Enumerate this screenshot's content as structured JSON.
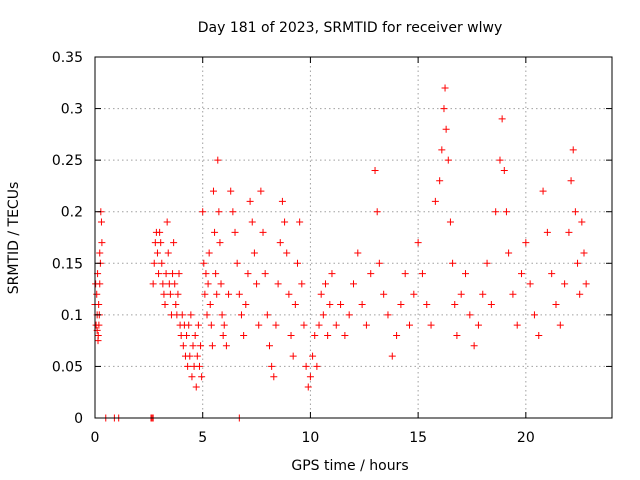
{
  "chart_data": {
    "type": "scatter",
    "title": "Day 181 of 2023, SRMTID for receiver wlwy",
    "xlabel": "GPS time / hours",
    "ylabel": "SRMTID / TECUs",
    "xlim": [
      0,
      24
    ],
    "ylim": [
      0,
      0.35
    ],
    "xticks": [
      0,
      5,
      10,
      15,
      20
    ],
    "yticks": [
      0,
      0.05,
      0.1,
      0.15,
      0.2,
      0.25,
      0.3,
      0.35
    ],
    "xtick_labels": [
      "0",
      "5",
      "10",
      "15",
      "20"
    ],
    "ytick_labels": [
      "0",
      "0.05",
      "0.1",
      "0.15",
      "0.2",
      "0.25",
      "0.3",
      "0.35"
    ],
    "grid": true,
    "marker": "plus",
    "color": "#ff0000",
    "series": [
      {
        "name": "SRMTID",
        "points": [
          [
            0.0,
            0.11
          ],
          [
            0.03,
            0.13
          ],
          [
            0.05,
            0.09
          ],
          [
            0.08,
            0.12
          ],
          [
            0.1,
            0.1
          ],
          [
            0.12,
            0.14
          ],
          [
            0.15,
            0.08
          ],
          [
            0.17,
            0.11
          ],
          [
            0.2,
            0.1
          ],
          [
            0.22,
            0.13
          ],
          [
            0.25,
            0.15
          ],
          [
            0.27,
            0.2
          ],
          [
            0.3,
            0.19
          ],
          [
            0.32,
            0.17
          ],
          [
            0.1,
            0.085
          ],
          [
            0.14,
            0.075
          ],
          [
            0.18,
            0.09
          ],
          [
            0.22,
            0.16
          ],
          [
            0.5,
            0.0
          ],
          [
            0.9,
            0.0
          ],
          [
            1.1,
            0.0
          ],
          [
            2.6,
            0.0
          ],
          [
            2.65,
            0.0
          ],
          [
            2.7,
            0.0
          ],
          [
            6.7,
            0.0
          ],
          [
            2.7,
            0.13
          ],
          [
            2.75,
            0.15
          ],
          [
            2.8,
            0.17
          ],
          [
            2.85,
            0.18
          ],
          [
            2.9,
            0.16
          ],
          [
            2.95,
            0.14
          ],
          [
            3.0,
            0.18
          ],
          [
            3.05,
            0.17
          ],
          [
            3.1,
            0.15
          ],
          [
            3.15,
            0.13
          ],
          [
            3.2,
            0.12
          ],
          [
            3.25,
            0.11
          ],
          [
            3.3,
            0.14
          ],
          [
            3.35,
            0.19
          ],
          [
            3.4,
            0.16
          ],
          [
            3.45,
            0.13
          ],
          [
            3.5,
            0.12
          ],
          [
            3.55,
            0.1
          ],
          [
            3.6,
            0.14
          ],
          [
            3.65,
            0.17
          ],
          [
            3.7,
            0.13
          ],
          [
            3.75,
            0.11
          ],
          [
            3.8,
            0.1
          ],
          [
            3.85,
            0.12
          ],
          [
            3.9,
            0.14
          ],
          [
            3.95,
            0.09
          ],
          [
            4.0,
            0.08
          ],
          [
            4.05,
            0.1
          ],
          [
            4.1,
            0.07
          ],
          [
            4.15,
            0.09
          ],
          [
            4.2,
            0.06
          ],
          [
            4.25,
            0.08
          ],
          [
            4.3,
            0.05
          ],
          [
            4.35,
            0.09
          ],
          [
            4.4,
            0.06
          ],
          [
            4.45,
            0.1
          ],
          [
            4.5,
            0.04
          ],
          [
            4.55,
            0.07
          ],
          [
            4.6,
            0.05
          ],
          [
            4.65,
            0.08
          ],
          [
            4.7,
            0.03
          ],
          [
            4.75,
            0.06
          ],
          [
            4.8,
            0.09
          ],
          [
            4.85,
            0.05
          ],
          [
            4.9,
            0.07
          ],
          [
            4.95,
            0.04
          ],
          [
            5.0,
            0.2
          ],
          [
            5.05,
            0.15
          ],
          [
            5.1,
            0.12
          ],
          [
            5.15,
            0.14
          ],
          [
            5.2,
            0.1
          ],
          [
            5.25,
            0.13
          ],
          [
            5.3,
            0.16
          ],
          [
            5.35,
            0.11
          ],
          [
            5.4,
            0.09
          ],
          [
            5.45,
            0.07
          ],
          [
            5.5,
            0.22
          ],
          [
            5.55,
            0.18
          ],
          [
            5.6,
            0.14
          ],
          [
            5.65,
            0.12
          ],
          [
            5.7,
            0.25
          ],
          [
            5.75,
            0.2
          ],
          [
            5.8,
            0.17
          ],
          [
            5.85,
            0.13
          ],
          [
            5.9,
            0.1
          ],
          [
            5.95,
            0.08
          ],
          [
            6.0,
            0.09
          ],
          [
            6.1,
            0.07
          ],
          [
            6.2,
            0.12
          ],
          [
            6.3,
            0.22
          ],
          [
            6.4,
            0.2
          ],
          [
            6.5,
            0.18
          ],
          [
            6.6,
            0.15
          ],
          [
            6.7,
            0.12
          ],
          [
            6.8,
            0.1
          ],
          [
            6.9,
            0.08
          ],
          [
            7.0,
            0.11
          ],
          [
            7.1,
            0.14
          ],
          [
            7.2,
            0.21
          ],
          [
            7.3,
            0.19
          ],
          [
            7.4,
            0.16
          ],
          [
            7.5,
            0.13
          ],
          [
            7.6,
            0.09
          ],
          [
            7.7,
            0.22
          ],
          [
            7.8,
            0.18
          ],
          [
            7.9,
            0.14
          ],
          [
            8.0,
            0.1
          ],
          [
            8.1,
            0.07
          ],
          [
            8.2,
            0.05
          ],
          [
            8.3,
            0.04
          ],
          [
            8.4,
            0.09
          ],
          [
            8.5,
            0.13
          ],
          [
            8.6,
            0.17
          ],
          [
            8.7,
            0.21
          ],
          [
            8.8,
            0.19
          ],
          [
            8.9,
            0.16
          ],
          [
            9.0,
            0.12
          ],
          [
            9.1,
            0.08
          ],
          [
            9.2,
            0.06
          ],
          [
            9.3,
            0.11
          ],
          [
            9.4,
            0.15
          ],
          [
            9.5,
            0.19
          ],
          [
            9.6,
            0.13
          ],
          [
            9.7,
            0.09
          ],
          [
            9.8,
            0.05
          ],
          [
            9.9,
            0.03
          ],
          [
            10.0,
            0.04
          ],
          [
            10.1,
            0.06
          ],
          [
            10.2,
            0.08
          ],
          [
            10.3,
            0.05
          ],
          [
            10.4,
            0.09
          ],
          [
            10.5,
            0.12
          ],
          [
            10.6,
            0.1
          ],
          [
            10.7,
            0.13
          ],
          [
            10.8,
            0.08
          ],
          [
            10.9,
            0.11
          ],
          [
            11.0,
            0.14
          ],
          [
            11.2,
            0.09
          ],
          [
            11.4,
            0.11
          ],
          [
            11.6,
            0.08
          ],
          [
            11.8,
            0.1
          ],
          [
            12.0,
            0.13
          ],
          [
            12.2,
            0.16
          ],
          [
            12.4,
            0.11
          ],
          [
            12.6,
            0.09
          ],
          [
            12.8,
            0.14
          ],
          [
            13.0,
            0.24
          ],
          [
            13.1,
            0.2
          ],
          [
            13.2,
            0.15
          ],
          [
            13.4,
            0.12
          ],
          [
            13.6,
            0.1
          ],
          [
            13.8,
            0.06
          ],
          [
            14.0,
            0.08
          ],
          [
            14.2,
            0.11
          ],
          [
            14.4,
            0.14
          ],
          [
            14.6,
            0.09
          ],
          [
            14.8,
            0.12
          ],
          [
            15.0,
            0.17
          ],
          [
            15.2,
            0.14
          ],
          [
            15.4,
            0.11
          ],
          [
            15.6,
            0.09
          ],
          [
            15.8,
            0.21
          ],
          [
            16.0,
            0.23
          ],
          [
            16.1,
            0.26
          ],
          [
            16.2,
            0.3
          ],
          [
            16.25,
            0.32
          ],
          [
            16.3,
            0.28
          ],
          [
            16.4,
            0.25
          ],
          [
            16.5,
            0.19
          ],
          [
            16.6,
            0.15
          ],
          [
            16.7,
            0.11
          ],
          [
            16.8,
            0.08
          ],
          [
            17.0,
            0.12
          ],
          [
            17.2,
            0.14
          ],
          [
            17.4,
            0.1
          ],
          [
            17.6,
            0.07
          ],
          [
            17.8,
            0.09
          ],
          [
            18.0,
            0.12
          ],
          [
            18.2,
            0.15
          ],
          [
            18.4,
            0.11
          ],
          [
            18.6,
            0.2
          ],
          [
            18.8,
            0.25
          ],
          [
            18.9,
            0.29
          ],
          [
            19.0,
            0.24
          ],
          [
            19.1,
            0.2
          ],
          [
            19.2,
            0.16
          ],
          [
            19.4,
            0.12
          ],
          [
            19.6,
            0.09
          ],
          [
            19.8,
            0.14
          ],
          [
            20.0,
            0.17
          ],
          [
            20.2,
            0.13
          ],
          [
            20.4,
            0.1
          ],
          [
            20.6,
            0.08
          ],
          [
            20.8,
            0.22
          ],
          [
            21.0,
            0.18
          ],
          [
            21.2,
            0.14
          ],
          [
            21.4,
            0.11
          ],
          [
            21.6,
            0.09
          ],
          [
            21.8,
            0.13
          ],
          [
            22.0,
            0.18
          ],
          [
            22.1,
            0.23
          ],
          [
            22.2,
            0.26
          ],
          [
            22.3,
            0.2
          ],
          [
            22.4,
            0.15
          ],
          [
            22.5,
            0.12
          ],
          [
            22.6,
            0.19
          ],
          [
            22.7,
            0.16
          ],
          [
            22.8,
            0.13
          ]
        ]
      }
    ]
  }
}
